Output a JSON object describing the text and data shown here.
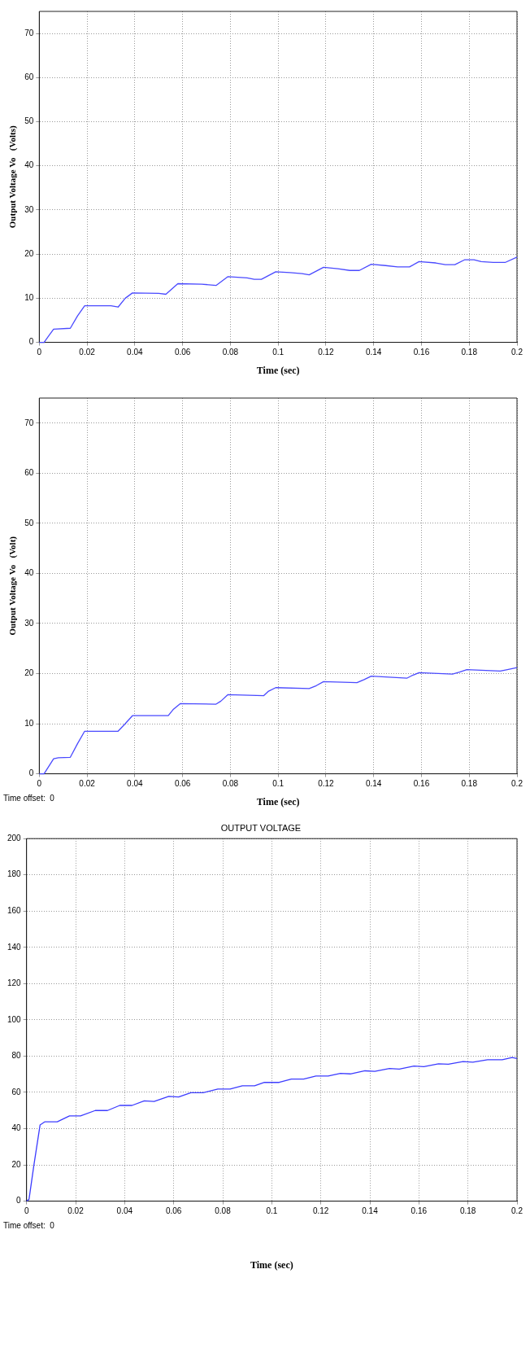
{
  "chart_data": [
    {
      "type": "line",
      "xlabel": "Time (sec)",
      "ylabel": "Output Voltage Vo   (Volts)",
      "xlim": [
        0,
        0.2
      ],
      "ylim": [
        0,
        75
      ],
      "xticks": [
        0,
        0.02,
        0.04,
        0.06,
        0.08,
        0.1,
        0.12,
        0.14,
        0.16,
        0.18,
        0.2
      ],
      "yticks": [
        0,
        10,
        20,
        30,
        40,
        50,
        60,
        70
      ],
      "grid": true,
      "marker": "none",
      "series": [
        {
          "color": "#4a4aff",
          "x": [
            0,
            0.002,
            0.004,
            0.006,
            0.013,
            0.016,
            0.019,
            0.03,
            0.033,
            0.036,
            0.039,
            0.05,
            0.053,
            0.058,
            0.068,
            0.074,
            0.079,
            0.087,
            0.09,
            0.093,
            0.099,
            0.105,
            0.11,
            0.113,
            0.119,
            0.125,
            0.13,
            0.134,
            0.139,
            0.145,
            0.15,
            0.155,
            0.159,
            0.166,
            0.17,
            0.174,
            0.178,
            0.182,
            0.185,
            0.19,
            0.195,
            0.2
          ],
          "values": [
            0,
            0,
            1.5,
            3,
            3.2,
            6,
            8.3,
            8.3,
            8,
            10,
            11.2,
            11.1,
            10.9,
            13.3,
            13.2,
            12.9,
            14.9,
            14.6,
            14.3,
            14.3,
            16,
            15.8,
            15.6,
            15.3,
            17,
            16.7,
            16.3,
            16.3,
            17.7,
            17.4,
            17.1,
            17.1,
            18.3,
            18,
            17.6,
            17.6,
            18.7,
            18.7,
            18.3,
            18.1,
            18.1,
            19.3
          ]
        }
      ]
    },
    {
      "type": "line",
      "xlabel": "Time (sec)",
      "ylabel": "Output Voltage Vo   (Volt)",
      "annotations": [
        "Time offset:  0"
      ],
      "xlim": [
        0,
        0.2
      ],
      "ylim": [
        0,
        75
      ],
      "xticks": [
        0,
        0.02,
        0.04,
        0.06,
        0.08,
        0.1,
        0.12,
        0.14,
        0.16,
        0.18,
        0.2
      ],
      "yticks": [
        0,
        10,
        20,
        30,
        40,
        50,
        60,
        70
      ],
      "grid": true,
      "marker": "none",
      "series": [
        {
          "color": "#4a4aff",
          "x": [
            0,
            0.002,
            0.004,
            0.006,
            0.008,
            0.013,
            0.016,
            0.019,
            0.033,
            0.036,
            0.039,
            0.054,
            0.056,
            0.059,
            0.074,
            0.076,
            0.079,
            0.094,
            0.096,
            0.099,
            0.113,
            0.116,
            0.119,
            0.133,
            0.136,
            0.139,
            0.154,
            0.156,
            0.159,
            0.173,
            0.176,
            0.179,
            0.193,
            0.196,
            0.2
          ],
          "values": [
            0,
            0,
            1.5,
            3,
            3.2,
            3.3,
            6,
            8.5,
            8.5,
            10,
            11.6,
            11.6,
            12.8,
            14,
            13.9,
            14.5,
            15.8,
            15.6,
            16.5,
            17.2,
            17,
            17.6,
            18.4,
            18.2,
            18.8,
            19.5,
            19.1,
            19.6,
            20.2,
            19.9,
            20.3,
            20.8,
            20.5,
            20.8,
            21.2
          ]
        }
      ]
    },
    {
      "type": "line",
      "title": "OUTPUT VOLTAGE",
      "xlabel": "Time (sec)",
      "annotations": [
        "Time offset:  0"
      ],
      "xlim": [
        0,
        0.2
      ],
      "ylim": [
        0,
        200
      ],
      "xticks": [
        0,
        0.02,
        0.04,
        0.06,
        0.08,
        0.1,
        0.12,
        0.14,
        0.16,
        0.18,
        0.2
      ],
      "yticks": [
        0,
        20,
        40,
        60,
        80,
        100,
        120,
        140,
        160,
        180,
        200
      ],
      "grid": true,
      "marker": "none",
      "series": [
        {
          "color": "#3c3cff",
          "x": [
            0,
            0.001,
            0.003,
            0.0055,
            0.0075,
            0.0125,
            0.0175,
            0.022,
            0.028,
            0.033,
            0.038,
            0.043,
            0.048,
            0.052,
            0.058,
            0.062,
            0.067,
            0.072,
            0.078,
            0.083,
            0.088,
            0.093,
            0.097,
            0.103,
            0.108,
            0.113,
            0.118,
            0.123,
            0.128,
            0.132,
            0.138,
            0.142,
            0.148,
            0.152,
            0.158,
            0.162,
            0.168,
            0.172,
            0.178,
            0.182,
            0.188,
            0.194,
            0.198,
            0.2
          ],
          "values": [
            0,
            1,
            20,
            42,
            43.8,
            43.8,
            47,
            47,
            50,
            50,
            52.8,
            52.8,
            55.3,
            55,
            57.8,
            57.5,
            59.8,
            59.8,
            61.8,
            61.8,
            63.6,
            63.6,
            65.5,
            65.5,
            67.3,
            67.3,
            69,
            69,
            70.5,
            70.2,
            71.9,
            71.6,
            73.2,
            72.8,
            74.5,
            74.2,
            75.8,
            75.5,
            77,
            76.7,
            78,
            78,
            79.2,
            78.7
          ]
        }
      ]
    }
  ]
}
